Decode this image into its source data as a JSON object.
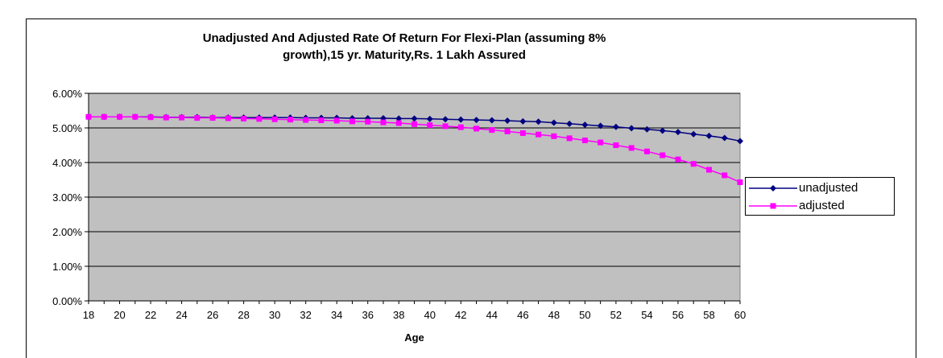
{
  "chart_data": {
    "type": "line",
    "title_lines": [
      "Unadjusted And Adjusted Rate Of Return For Flexi-Plan (assuming 8%",
      "growth),15 yr. Maturity,Rs. 1 Lakh Assured"
    ],
    "xlabel": "Age",
    "ylabel": "",
    "x": [
      18,
      19,
      20,
      21,
      22,
      23,
      24,
      25,
      26,
      27,
      28,
      29,
      30,
      31,
      32,
      33,
      34,
      35,
      36,
      37,
      38,
      39,
      40,
      41,
      42,
      43,
      44,
      45,
      46,
      47,
      48,
      49,
      50,
      51,
      52,
      53,
      54,
      55,
      56,
      57,
      58,
      59,
      60
    ],
    "x_tick_labels": [
      "18",
      "20",
      "22",
      "24",
      "26",
      "28",
      "30",
      "32",
      "34",
      "36",
      "38",
      "40",
      "42",
      "44",
      "46",
      "48",
      "50",
      "52",
      "54",
      "56",
      "58",
      "60"
    ],
    "y_tick_labels": [
      "0.00%",
      "1.00%",
      "2.00%",
      "3.00%",
      "4.00%",
      "5.00%",
      "6.00%"
    ],
    "ylim": [
      0,
      0.06
    ],
    "grid": "horizontal",
    "plot_background": "#c0c0c0",
    "legend_position": "right",
    "series": [
      {
        "name": "unadjusted",
        "color": "#000080",
        "marker": "diamond",
        "values": [
          0.0532,
          0.0532,
          0.0532,
          0.0532,
          0.0532,
          0.0531,
          0.0531,
          0.0531,
          0.053,
          0.053,
          0.053,
          0.053,
          0.053,
          0.053,
          0.0529,
          0.0529,
          0.0529,
          0.0528,
          0.0528,
          0.0528,
          0.0527,
          0.0527,
          0.0526,
          0.0525,
          0.0524,
          0.0523,
          0.0522,
          0.0521,
          0.0519,
          0.0518,
          0.0515,
          0.0512,
          0.0509,
          0.0506,
          0.0503,
          0.0499,
          0.0496,
          0.0492,
          0.0488,
          0.0482,
          0.0477,
          0.0471,
          0.0462
        ]
      },
      {
        "name": "adjusted",
        "color": "#ff00ff",
        "marker": "square",
        "values": [
          0.0532,
          0.0532,
          0.0532,
          0.0532,
          0.0531,
          0.053,
          0.053,
          0.0529,
          0.0529,
          0.0528,
          0.0527,
          0.0526,
          0.0525,
          0.0524,
          0.0523,
          0.0522,
          0.0521,
          0.0519,
          0.0518,
          0.0516,
          0.0514,
          0.0511,
          0.0508,
          0.0505,
          0.0502,
          0.0498,
          0.0494,
          0.049,
          0.0485,
          0.0481,
          0.0476,
          0.047,
          0.0464,
          0.0458,
          0.045,
          0.0442,
          0.0432,
          0.0421,
          0.0409,
          0.0396,
          0.0379,
          0.0363,
          0.0343
        ]
      }
    ]
  }
}
